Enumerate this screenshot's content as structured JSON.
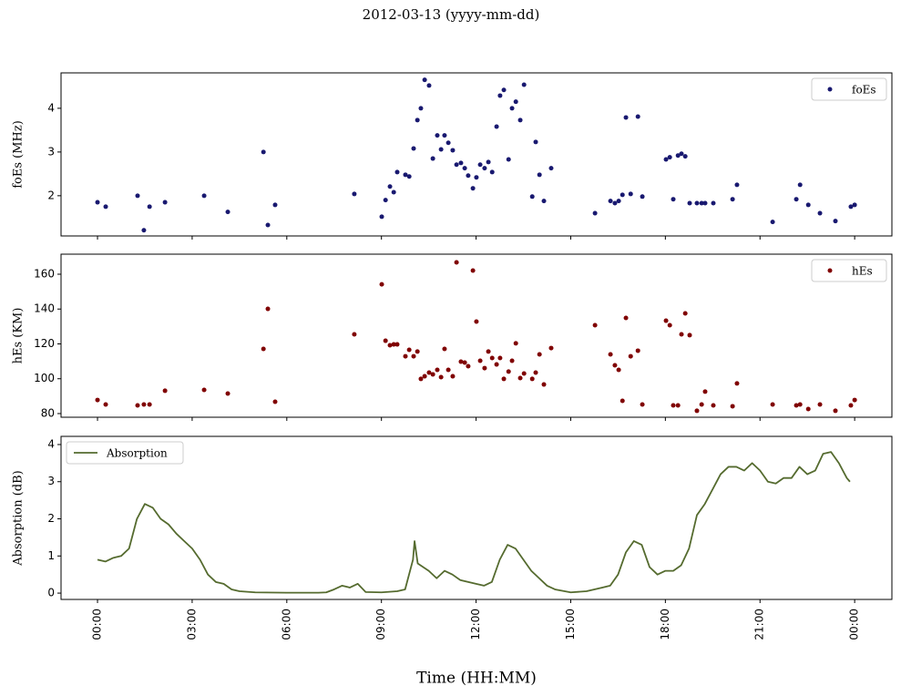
{
  "title": "2012-03-13 (yyyy-mm-dd)",
  "xlabel": "Time (HH:MM)",
  "xlim": [
    -1.156,
    25.18
  ],
  "xticks": [
    {
      "value": 0,
      "label": "00:00"
    },
    {
      "value": 3,
      "label": "03:00"
    },
    {
      "value": 6,
      "label": "06:00"
    },
    {
      "value": 9,
      "label": "09:00"
    },
    {
      "value": 12,
      "label": "12:00"
    },
    {
      "value": 15,
      "label": "15:00"
    },
    {
      "value": 18,
      "label": "18:00"
    },
    {
      "value": 21,
      "label": "21:00"
    },
    {
      "value": 24,
      "label": "00:00"
    }
  ],
  "chart_data": [
    {
      "type": "scatter",
      "ylabel": "foEs (MHz)",
      "legend": "upper right",
      "ylim": [
        1.08,
        4.81
      ],
      "yticks": [
        2,
        3,
        4
      ],
      "x": [
        0,
        0.26,
        1.27,
        1.47,
        1.65,
        2.14,
        3.38,
        4.13,
        5.26,
        5.4,
        5.63,
        8.14,
        9.01,
        9.13,
        9.27,
        9.39,
        9.5,
        9.76,
        9.88,
        10.02,
        10.14,
        10.25,
        10.37,
        10.51,
        10.63,
        10.77,
        10.89,
        11.0,
        11.12,
        11.26,
        11.38,
        11.52,
        11.64,
        11.75,
        11.9,
        12.01,
        12.13,
        12.27,
        12.39,
        12.51,
        12.65,
        12.76,
        12.88,
        13.03,
        13.14,
        13.26,
        13.4,
        13.52,
        13.78,
        13.89,
        14.01,
        14.15,
        14.38,
        15.77,
        16.26,
        16.4,
        16.52,
        16.64,
        16.75,
        16.9,
        17.13,
        17.27,
        18.02,
        18.14,
        18.25,
        18.4,
        18.51,
        18.63,
        18.77,
        19.0,
        19.15,
        19.26,
        19.52,
        20.13,
        20.27,
        21.4,
        22.15,
        22.27,
        22.53,
        22.9,
        23.39,
        23.88,
        24.0
      ],
      "series": [
        {
          "name": "foEs",
          "color": "#191970",
          "values": [
            1.85,
            1.75,
            2.0,
            1.21,
            1.75,
            1.85,
            2.0,
            1.63,
            3.0,
            1.33,
            1.79,
            2.04,
            1.52,
            1.9,
            2.21,
            2.08,
            2.54,
            2.48,
            2.44,
            3.08,
            3.73,
            4.0,
            4.65,
            4.52,
            2.85,
            3.38,
            3.06,
            3.38,
            3.21,
            3.04,
            2.71,
            2.75,
            2.63,
            2.46,
            2.17,
            2.42,
            2.71,
            2.63,
            2.77,
            2.54,
            3.58,
            4.29,
            4.42,
            2.83,
            4.0,
            4.15,
            3.73,
            4.54,
            1.98,
            3.23,
            2.48,
            1.88,
            2.63,
            1.6,
            1.88,
            1.83,
            1.88,
            2.02,
            3.79,
            2.04,
            3.81,
            1.98,
            2.83,
            2.88,
            1.92,
            2.92,
            2.96,
            2.9,
            1.83,
            1.83,
            1.83,
            1.83,
            1.83,
            1.92,
            2.25,
            1.4,
            1.92,
            2.25,
            1.79,
            1.6,
            1.42,
            1.75,
            1.79
          ]
        }
      ]
    },
    {
      "type": "scatter",
      "ylabel": "hEs (KM)",
      "legend": "upper right",
      "ylim": [
        77.9,
        171.5
      ],
      "yticks": [
        80,
        100,
        120,
        140,
        160
      ],
      "x": [
        0,
        0.26,
        1.27,
        1.47,
        1.65,
        2.14,
        3.38,
        4.13,
        5.26,
        5.4,
        5.63,
        8.14,
        9.01,
        9.13,
        9.27,
        9.39,
        9.5,
        9.76,
        9.88,
        10.02,
        10.14,
        10.25,
        10.37,
        10.51,
        10.63,
        10.77,
        10.89,
        11.0,
        11.12,
        11.26,
        11.38,
        11.52,
        11.64,
        11.75,
        11.9,
        12.01,
        12.13,
        12.27,
        12.39,
        12.51,
        12.65,
        12.76,
        12.88,
        13.03,
        13.14,
        13.26,
        13.4,
        13.52,
        13.78,
        13.89,
        14.01,
        14.15,
        14.38,
        15.77,
        16.26,
        16.4,
        16.52,
        16.64,
        16.75,
        16.9,
        17.13,
        17.27,
        18.02,
        18.14,
        18.25,
        18.4,
        18.51,
        18.63,
        18.77,
        19.0,
        19.15,
        19.26,
        19.52,
        20.13,
        20.27,
        21.4,
        22.15,
        22.27,
        22.53,
        22.9,
        23.39,
        23.88,
        24.0
      ],
      "series": [
        {
          "name": "hEs",
          "color": "#800000",
          "values": [
            87.8,
            85.2,
            84.7,
            85.2,
            85.2,
            93.1,
            93.6,
            91.5,
            117.1,
            140.1,
            86.8,
            125.5,
            154.2,
            121.8,
            119.2,
            119.7,
            119.7,
            112.9,
            116.6,
            112.9,
            115.6,
            99.9,
            101.4,
            103.5,
            102.5,
            105.1,
            100.9,
            117.1,
            105.1,
            101.4,
            166.8,
            109.8,
            109.3,
            107.2,
            162.1,
            132.8,
            110.3,
            106.1,
            115.6,
            111.9,
            108.2,
            111.9,
            99.9,
            104.1,
            110.3,
            120.3,
            100.4,
            103.0,
            99.9,
            103.5,
            114.0,
            96.7,
            117.6,
            130.7,
            114.0,
            107.7,
            105.1,
            87.3,
            134.9,
            112.9,
            116.1,
            85.2,
            133.3,
            130.7,
            84.7,
            84.7,
            125.5,
            137.5,
            125.0,
            81.6,
            85.2,
            92.6,
            84.7,
            84.2,
            97.3,
            85.2,
            84.7,
            85.2,
            82.6,
            85.2,
            81.6,
            84.7,
            87.8
          ]
        }
      ]
    },
    {
      "type": "line",
      "ylabel": "Absorption (dB)",
      "legend": "upper left",
      "ylim": [
        -0.17,
        4.22
      ],
      "yticks": [
        0,
        1,
        2,
        3,
        4
      ],
      "x": [
        0,
        0.25,
        0.5,
        0.75,
        1.0,
        1.25,
        1.5,
        1.75,
        2.0,
        2.25,
        2.5,
        2.75,
        3.0,
        3.25,
        3.5,
        3.75,
        4.0,
        4.25,
        4.5,
        5.0,
        6.0,
        7.0,
        7.25,
        7.5,
        7.75,
        8.0,
        8.25,
        8.5,
        9.0,
        9.5,
        9.75,
        10.0,
        10.05,
        10.15,
        10.5,
        10.75,
        11.0,
        11.25,
        11.5,
        12.0,
        12.25,
        12.5,
        12.75,
        13.0,
        13.25,
        13.5,
        13.75,
        14.0,
        14.25,
        14.5,
        15.0,
        15.5,
        16.0,
        16.25,
        16.5,
        16.75,
        17.0,
        17.25,
        17.5,
        17.75,
        18.0,
        18.25,
        18.5,
        18.75,
        19.0,
        19.25,
        19.5,
        19.75,
        20.0,
        20.25,
        20.5,
        20.75,
        21.0,
        21.25,
        21.5,
        21.75,
        22.0,
        22.25,
        22.5,
        22.75,
        23.0,
        23.25,
        23.5,
        23.75,
        23.85
      ],
      "series": [
        {
          "name": "Absorption",
          "color": "#556b2f",
          "values": [
            0.9,
            0.85,
            0.95,
            1.0,
            1.2,
            2.0,
            2.4,
            2.3,
            2.0,
            1.85,
            1.6,
            1.4,
            1.2,
            0.9,
            0.5,
            0.3,
            0.25,
            0.1,
            0.05,
            0.02,
            0.01,
            0.01,
            0.02,
            0.1,
            0.2,
            0.15,
            0.25,
            0.03,
            0.02,
            0.05,
            0.1,
            0.9,
            1.4,
            0.8,
            0.6,
            0.4,
            0.6,
            0.5,
            0.35,
            0.25,
            0.2,
            0.3,
            0.9,
            1.3,
            1.2,
            0.9,
            0.6,
            0.4,
            0.2,
            0.1,
            0.02,
            0.05,
            0.15,
            0.2,
            0.5,
            1.1,
            1.4,
            1.3,
            0.7,
            0.5,
            0.6,
            0.6,
            0.75,
            1.2,
            2.1,
            2.4,
            2.8,
            3.2,
            3.4,
            3.4,
            3.3,
            3.5,
            3.3,
            3.0,
            2.95,
            3.1,
            3.1,
            3.4,
            3.2,
            3.3,
            3.75,
            3.8,
            3.5,
            3.1,
            3.0
          ]
        }
      ]
    }
  ]
}
